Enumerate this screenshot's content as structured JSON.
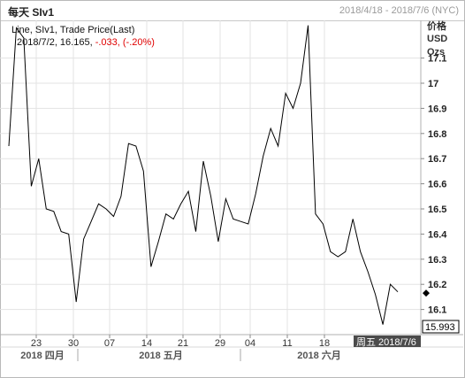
{
  "window": {
    "title": "每天 SIv1",
    "date_range": "2018/4/18 - 2018/7/6 (NYC)"
  },
  "legend": {
    "line1": "Line, SIv1, Trade Price(Last)",
    "line2_prefix": "2018/7/2, 16.165, ",
    "line2_change": "-.033, (-.20%)",
    "change_color": "#e00000"
  },
  "units": [
    "价格",
    "USD",
    "Ozs"
  ],
  "last_price_label": "15.993",
  "crosshair_date_label": "周五 2018/7/6",
  "chart_data": {
    "type": "line",
    "series": [
      {
        "values": [
          16.75,
          17.22,
          17.18,
          16.59,
          16.7,
          16.5,
          16.49,
          16.41,
          16.4,
          16.13,
          16.38,
          16.45,
          16.52,
          16.5,
          16.47,
          16.55,
          16.76,
          16.75,
          16.65,
          16.27,
          16.37,
          16.48,
          16.46,
          16.52,
          16.57,
          16.41,
          16.69,
          16.55,
          16.37,
          16.54,
          16.46,
          16.45,
          16.44,
          16.56,
          16.71,
          16.82,
          16.75,
          16.96,
          16.9,
          17.0,
          17.23,
          16.48,
          16.44,
          16.33,
          16.31,
          16.33,
          16.46,
          16.33,
          16.25,
          16.16,
          16.04,
          16.2,
          16.17
        ]
      }
    ],
    "x_tick_labels": [
      "23",
      "30",
      "07",
      "14",
      "21",
      "29",
      "04",
      "11",
      "18"
    ],
    "x_group_labels": [
      "2018 四月",
      "2018 五月",
      "2018 六月"
    ],
    "y_ticks": [
      16.1,
      16.2,
      16.3,
      16.4,
      16.5,
      16.6,
      16.7,
      16.8,
      16.9,
      17.0,
      17.1
    ],
    "ylim": [
      16.0,
      17.25
    ],
    "last_value": 16.165,
    "grid": true
  }
}
